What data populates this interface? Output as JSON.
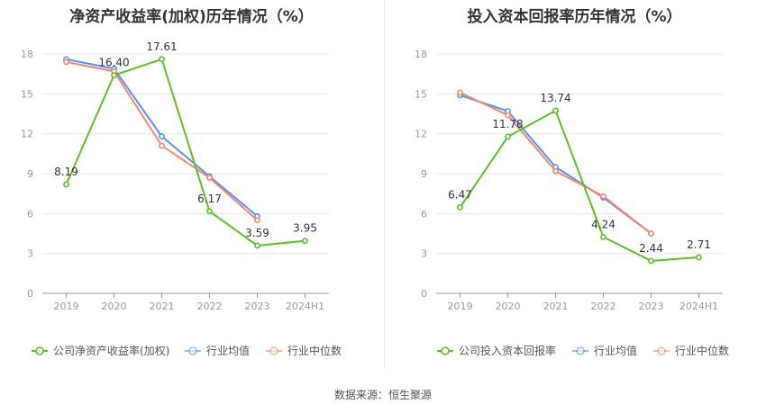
{
  "colors": {
    "company": "#5cbf2a",
    "avg": "#5b8ff9",
    "median": "#f4896b",
    "grid": "#e8e8e8",
    "axis": "#999999",
    "label": "#333333"
  },
  "chart_data": [
    {
      "type": "line",
      "title": "净资产收益率(加权)历年情况（%）",
      "categories": [
        "2019",
        "2020",
        "2021",
        "2022",
        "2023",
        "2024H1"
      ],
      "ylim": [
        0,
        18
      ],
      "yticks": [
        "0",
        "3",
        "6",
        "9",
        "12",
        "15",
        "18"
      ],
      "series": [
        {
          "name": "公司净资产收益率(加权)",
          "color_key": "company",
          "values": [
            8.19,
            16.4,
            17.61,
            6.17,
            3.59,
            3.95
          ],
          "labels": [
            "8.19",
            "16.40",
            "17.61",
            "6.17",
            "3.59",
            "3.95"
          ]
        },
        {
          "name": "行业均值",
          "color_key": "avg",
          "values": [
            17.6,
            16.9,
            11.8,
            8.8,
            5.8,
            null
          ]
        },
        {
          "name": "行业中位数",
          "color_key": "median",
          "values": [
            17.4,
            16.7,
            11.1,
            8.7,
            5.5,
            null
          ]
        }
      ]
    },
    {
      "type": "line",
      "title": "投入资本回报率历年情况（%）",
      "categories": [
        "2019",
        "2020",
        "2021",
        "2022",
        "2023",
        "2024H1"
      ],
      "ylim": [
        0,
        18
      ],
      "yticks": [
        "0",
        "3",
        "6",
        "9",
        "12",
        "15",
        "18"
      ],
      "series": [
        {
          "name": "公司投入资本回报率",
          "color_key": "company",
          "values": [
            6.47,
            11.78,
            13.74,
            4.24,
            2.44,
            2.71
          ],
          "labels": [
            "6.47",
            "11.78",
            "13.74",
            "4.24",
            "2.44",
            "2.71"
          ]
        },
        {
          "name": "行业均值",
          "color_key": "avg",
          "values": [
            14.9,
            13.7,
            9.5,
            7.2,
            4.5,
            null
          ]
        },
        {
          "name": "行业中位数",
          "color_key": "median",
          "values": [
            15.1,
            13.4,
            9.2,
            7.3,
            4.5,
            null
          ]
        }
      ]
    }
  ],
  "source": "数据来源：恒生聚源"
}
